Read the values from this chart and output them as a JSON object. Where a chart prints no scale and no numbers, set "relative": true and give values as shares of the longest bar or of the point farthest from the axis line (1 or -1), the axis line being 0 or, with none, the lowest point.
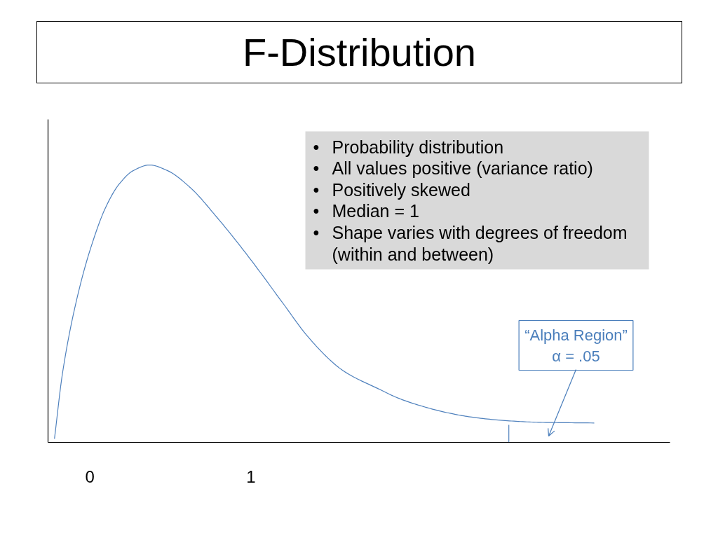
{
  "chart_data": {
    "type": "line",
    "title": "F-Distribution",
    "relative": true,
    "x": [
      -0.22,
      -0.17,
      -0.08,
      0.01,
      0.1,
      0.18,
      0.27,
      0.37,
      0.48,
      0.62,
      0.79,
      0.97,
      1.2,
      1.34,
      1.49,
      1.56,
      1.63,
      1.78,
      1.92,
      2.07,
      2.21,
      2.37,
      2.59,
      2.81,
      3.13
    ],
    "series": [
      {
        "color": "#4f81bd",
        "values": [
          0.013,
          0.25,
          0.52,
          0.71,
          0.85,
          0.93,
          0.98,
          1.0,
          0.98,
          0.92,
          0.81,
          0.68,
          0.5,
          0.39,
          0.297,
          0.263,
          0.238,
          0.196,
          0.158,
          0.129,
          0.108,
          0.091,
          0.078,
          0.072,
          0.07
        ]
      },
      {
        "color": "#4f81bd",
        "x": [
          2.6,
          2.6
        ],
        "values": [
          0,
          0.063
        ]
      }
    ],
    "xlim": [
      -0.26,
      3.6
    ],
    "xticks": [
      0,
      1
    ],
    "tick_labels": "x",
    "grid": false,
    "annotations": [
      "• Probability distribution",
      "• All values positive (variance ratio)",
      "• Positively skewed",
      "• Median = 1",
      "• Shape varies with degrees of freedom (within and between)",
      "“Alpha Region”\nα = .05"
    ]
  }
}
